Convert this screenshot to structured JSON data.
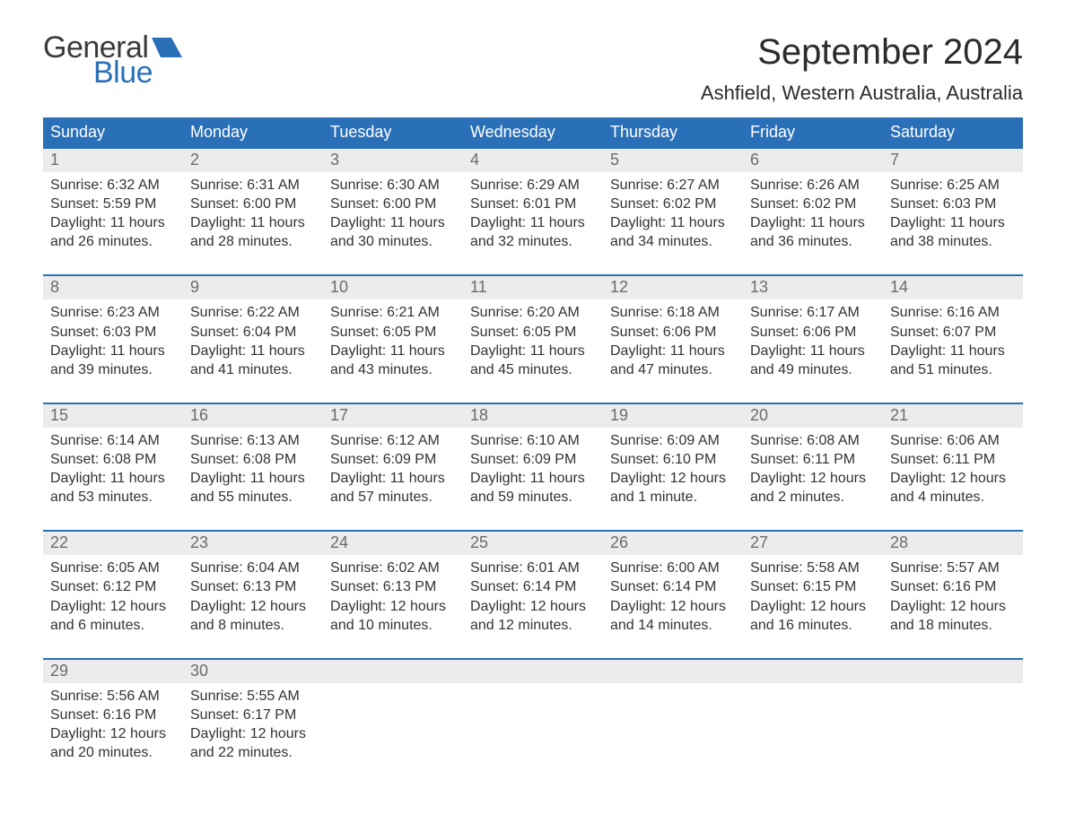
{
  "brand": {
    "word1": "General",
    "word2": "Blue",
    "flag_color": "#2a70b8"
  },
  "title": "September 2024",
  "location": "Ashfield, Western Australia, Australia",
  "colors": {
    "header_bg": "#2a70b8",
    "header_text": "#ffffff",
    "daynum_bg": "#ececec",
    "daynum_text": "#6b6b6b",
    "body_text": "#333333",
    "week_border": "#2a70b8",
    "page_bg": "#ffffff"
  },
  "typography": {
    "title_fontsize": 40,
    "location_fontsize": 22,
    "dow_fontsize": 18,
    "daynum_fontsize": 18,
    "cell_fontsize": 16
  },
  "days_of_week": [
    "Sunday",
    "Monday",
    "Tuesday",
    "Wednesday",
    "Thursday",
    "Friday",
    "Saturday"
  ],
  "weeks": [
    [
      {
        "n": "1",
        "sunrise": "Sunrise: 6:32 AM",
        "sunset": "Sunset: 5:59 PM",
        "d1": "Daylight: 11 hours",
        "d2": "and 26 minutes."
      },
      {
        "n": "2",
        "sunrise": "Sunrise: 6:31 AM",
        "sunset": "Sunset: 6:00 PM",
        "d1": "Daylight: 11 hours",
        "d2": "and 28 minutes."
      },
      {
        "n": "3",
        "sunrise": "Sunrise: 6:30 AM",
        "sunset": "Sunset: 6:00 PM",
        "d1": "Daylight: 11 hours",
        "d2": "and 30 minutes."
      },
      {
        "n": "4",
        "sunrise": "Sunrise: 6:29 AM",
        "sunset": "Sunset: 6:01 PM",
        "d1": "Daylight: 11 hours",
        "d2": "and 32 minutes."
      },
      {
        "n": "5",
        "sunrise": "Sunrise: 6:27 AM",
        "sunset": "Sunset: 6:02 PM",
        "d1": "Daylight: 11 hours",
        "d2": "and 34 minutes."
      },
      {
        "n": "6",
        "sunrise": "Sunrise: 6:26 AM",
        "sunset": "Sunset: 6:02 PM",
        "d1": "Daylight: 11 hours",
        "d2": "and 36 minutes."
      },
      {
        "n": "7",
        "sunrise": "Sunrise: 6:25 AM",
        "sunset": "Sunset: 6:03 PM",
        "d1": "Daylight: 11 hours",
        "d2": "and 38 minutes."
      }
    ],
    [
      {
        "n": "8",
        "sunrise": "Sunrise: 6:23 AM",
        "sunset": "Sunset: 6:03 PM",
        "d1": "Daylight: 11 hours",
        "d2": "and 39 minutes."
      },
      {
        "n": "9",
        "sunrise": "Sunrise: 6:22 AM",
        "sunset": "Sunset: 6:04 PM",
        "d1": "Daylight: 11 hours",
        "d2": "and 41 minutes."
      },
      {
        "n": "10",
        "sunrise": "Sunrise: 6:21 AM",
        "sunset": "Sunset: 6:05 PM",
        "d1": "Daylight: 11 hours",
        "d2": "and 43 minutes."
      },
      {
        "n": "11",
        "sunrise": "Sunrise: 6:20 AM",
        "sunset": "Sunset: 6:05 PM",
        "d1": "Daylight: 11 hours",
        "d2": "and 45 minutes."
      },
      {
        "n": "12",
        "sunrise": "Sunrise: 6:18 AM",
        "sunset": "Sunset: 6:06 PM",
        "d1": "Daylight: 11 hours",
        "d2": "and 47 minutes."
      },
      {
        "n": "13",
        "sunrise": "Sunrise: 6:17 AM",
        "sunset": "Sunset: 6:06 PM",
        "d1": "Daylight: 11 hours",
        "d2": "and 49 minutes."
      },
      {
        "n": "14",
        "sunrise": "Sunrise: 6:16 AM",
        "sunset": "Sunset: 6:07 PM",
        "d1": "Daylight: 11 hours",
        "d2": "and 51 minutes."
      }
    ],
    [
      {
        "n": "15",
        "sunrise": "Sunrise: 6:14 AM",
        "sunset": "Sunset: 6:08 PM",
        "d1": "Daylight: 11 hours",
        "d2": "and 53 minutes."
      },
      {
        "n": "16",
        "sunrise": "Sunrise: 6:13 AM",
        "sunset": "Sunset: 6:08 PM",
        "d1": "Daylight: 11 hours",
        "d2": "and 55 minutes."
      },
      {
        "n": "17",
        "sunrise": "Sunrise: 6:12 AM",
        "sunset": "Sunset: 6:09 PM",
        "d1": "Daylight: 11 hours",
        "d2": "and 57 minutes."
      },
      {
        "n": "18",
        "sunrise": "Sunrise: 6:10 AM",
        "sunset": "Sunset: 6:09 PM",
        "d1": "Daylight: 11 hours",
        "d2": "and 59 minutes."
      },
      {
        "n": "19",
        "sunrise": "Sunrise: 6:09 AM",
        "sunset": "Sunset: 6:10 PM",
        "d1": "Daylight: 12 hours",
        "d2": "and 1 minute."
      },
      {
        "n": "20",
        "sunrise": "Sunrise: 6:08 AM",
        "sunset": "Sunset: 6:11 PM",
        "d1": "Daylight: 12 hours",
        "d2": "and 2 minutes."
      },
      {
        "n": "21",
        "sunrise": "Sunrise: 6:06 AM",
        "sunset": "Sunset: 6:11 PM",
        "d1": "Daylight: 12 hours",
        "d2": "and 4 minutes."
      }
    ],
    [
      {
        "n": "22",
        "sunrise": "Sunrise: 6:05 AM",
        "sunset": "Sunset: 6:12 PM",
        "d1": "Daylight: 12 hours",
        "d2": "and 6 minutes."
      },
      {
        "n": "23",
        "sunrise": "Sunrise: 6:04 AM",
        "sunset": "Sunset: 6:13 PM",
        "d1": "Daylight: 12 hours",
        "d2": "and 8 minutes."
      },
      {
        "n": "24",
        "sunrise": "Sunrise: 6:02 AM",
        "sunset": "Sunset: 6:13 PM",
        "d1": "Daylight: 12 hours",
        "d2": "and 10 minutes."
      },
      {
        "n": "25",
        "sunrise": "Sunrise: 6:01 AM",
        "sunset": "Sunset: 6:14 PM",
        "d1": "Daylight: 12 hours",
        "d2": "and 12 minutes."
      },
      {
        "n": "26",
        "sunrise": "Sunrise: 6:00 AM",
        "sunset": "Sunset: 6:14 PM",
        "d1": "Daylight: 12 hours",
        "d2": "and 14 minutes."
      },
      {
        "n": "27",
        "sunrise": "Sunrise: 5:58 AM",
        "sunset": "Sunset: 6:15 PM",
        "d1": "Daylight: 12 hours",
        "d2": "and 16 minutes."
      },
      {
        "n": "28",
        "sunrise": "Sunrise: 5:57 AM",
        "sunset": "Sunset: 6:16 PM",
        "d1": "Daylight: 12 hours",
        "d2": "and 18 minutes."
      }
    ],
    [
      {
        "n": "29",
        "sunrise": "Sunrise: 5:56 AM",
        "sunset": "Sunset: 6:16 PM",
        "d1": "Daylight: 12 hours",
        "d2": "and 20 minutes."
      },
      {
        "n": "30",
        "sunrise": "Sunrise: 5:55 AM",
        "sunset": "Sunset: 6:17 PM",
        "d1": "Daylight: 12 hours",
        "d2": "and 22 minutes."
      },
      null,
      null,
      null,
      null,
      null
    ]
  ]
}
